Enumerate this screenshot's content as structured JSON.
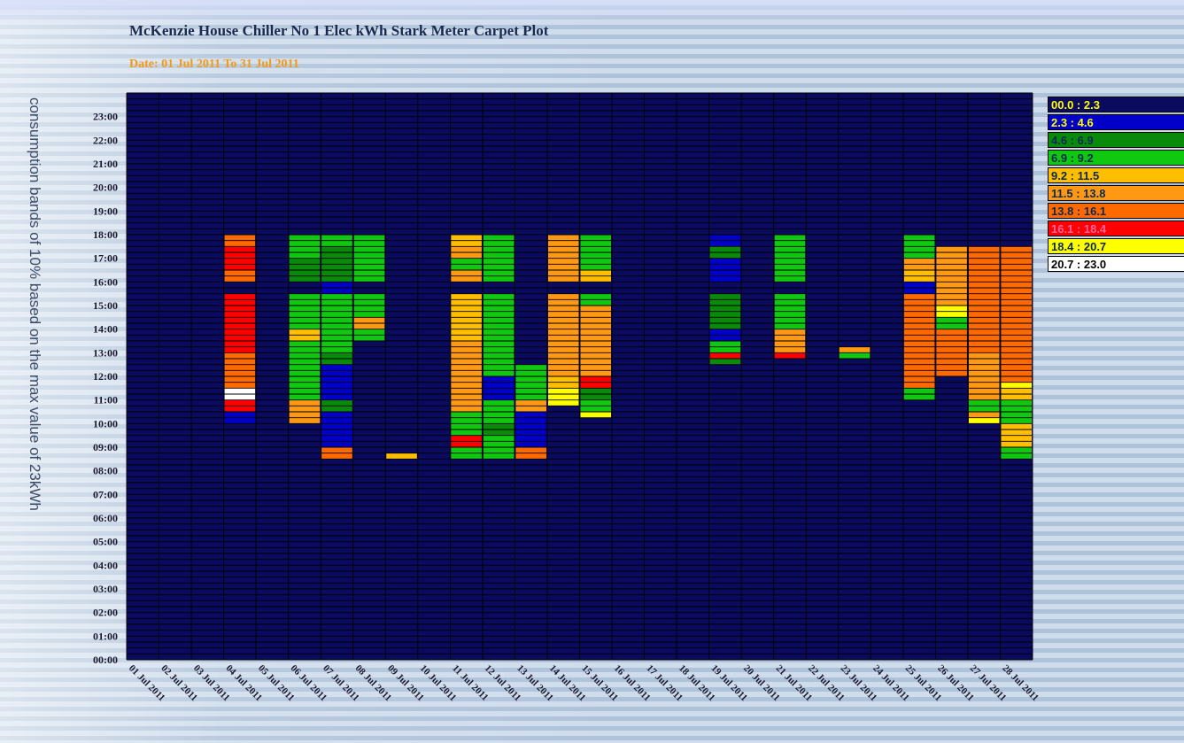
{
  "chart_data": {
    "type": "heatmap",
    "title": "McKenzie House Chiller No 1 Elec kWh Stark Meter Carpet Plot",
    "subtitle": "Date: 01 Jul 2011 To 31 Jul 2011",
    "ylabel": "consumption bands of 10% based on the max value of  23kWh",
    "background_color": "#0a0a5e",
    "x_labels": [
      "01 Jul 2011",
      "02 Jul 2011",
      "03 Jul 2011",
      "04 Jul 2011",
      "05 Jul 2011",
      "06 Jul 2011",
      "07 Jul 2011",
      "08 Jul 2011",
      "09 Jul 2011",
      "10 Jul 2011",
      "11 Jul 2011",
      "12 Jul 2011",
      "13 Jul 2011",
      "14 Jul 2011",
      "15 Jul 2011",
      "16 Jul 2011",
      "17 Jul 2011",
      "18 Jul 2011",
      "19 Jul 2011",
      "20 Jul 2011",
      "21 Jul 2011",
      "22 Jul 2011",
      "23 Jul 2011",
      "24 Jul 2011",
      "25 Jul 2011",
      "26 Jul 2011",
      "27 Jul 2011",
      "28 Jul 2011"
    ],
    "y_labels": [
      "00:00",
      "01:00",
      "02:00",
      "03:00",
      "04:00",
      "05:00",
      "06:00",
      "07:00",
      "08:00",
      "09:00",
      "10:00",
      "11:00",
      "12:00",
      "13:00",
      "14:00",
      "15:00",
      "16:00",
      "17:00",
      "18:00",
      "19:00",
      "20:00",
      "21:00",
      "22:00",
      "23:00"
    ],
    "bands": [
      {
        "label": "00.0 : 2.3",
        "color": "#0a0a5e",
        "text_color": "#ffff00"
      },
      {
        "label": "2.3 : 4.6",
        "color": "#0000c8",
        "text_color": "#ffff00"
      },
      {
        "label": "4.6 : 6.9",
        "color": "#0a8a0a",
        "text_color": "#0a2a55"
      },
      {
        "label": "6.9 : 9.2",
        "color": "#10c810",
        "text_color": "#0a2a55"
      },
      {
        "label": "9.2 : 11.5",
        "color": "#ffbf00",
        "text_color": "#0a2a55"
      },
      {
        "label": "11.5 : 13.8",
        "color": "#ff9914",
        "text_color": "#0a2a55"
      },
      {
        "label": "13.8 : 16.1",
        "color": "#ff6a00",
        "text_color": "#0a2a55"
      },
      {
        "label": "16.1 : 18.4",
        "color": "#ff0000",
        "text_color": "#ff66a0"
      },
      {
        "label": "18.4 : 20.7",
        "color": "#ffff00",
        "text_color": "#0a2a55"
      },
      {
        "label": "20.7 : 23.0",
        "color": "#ffffff",
        "text_color": "#000000"
      }
    ],
    "runs": [
      {
        "day": 4,
        "segments": [
          [
            "10:00",
            "10:30",
            1
          ],
          [
            "10:30",
            "11:00",
            7
          ],
          [
            "11:00",
            "11:30",
            9
          ],
          [
            "11:30",
            "13:00",
            6
          ],
          [
            "13:00",
            "15:30",
            7
          ],
          [
            "16:00",
            "16:30",
            6
          ],
          [
            "16:30",
            "17:30",
            7
          ],
          [
            "17:30",
            "18:00",
            6
          ]
        ]
      },
      {
        "day": 6,
        "segments": [
          [
            "10:00",
            "11:00",
            5
          ],
          [
            "11:00",
            "13:30",
            3
          ],
          [
            "13:30",
            "14:00",
            4
          ],
          [
            "14:00",
            "15:30",
            3
          ],
          [
            "16:00",
            "17:00",
            2
          ],
          [
            "17:00",
            "18:00",
            3
          ]
        ]
      },
      {
        "day": 7,
        "segments": [
          [
            "08:30",
            "09:00",
            6
          ],
          [
            "09:00",
            "10:30",
            1
          ],
          [
            "10:30",
            "11:00",
            2
          ],
          [
            "11:00",
            "12:30",
            1
          ],
          [
            "12:30",
            "13:00",
            2
          ],
          [
            "13:00",
            "15:30",
            3
          ],
          [
            "15:30",
            "16:00",
            1
          ],
          [
            "16:00",
            "17:30",
            2
          ],
          [
            "17:30",
            "18:00",
            3
          ]
        ]
      },
      {
        "day": 8,
        "segments": [
          [
            "13:30",
            "14:00",
            3
          ],
          [
            "14:00",
            "14:30",
            5
          ],
          [
            "14:30",
            "15:30",
            3
          ],
          [
            "16:00",
            "18:00",
            3
          ]
        ]
      },
      {
        "day": 9,
        "segments": [
          [
            "08:30",
            "08:45",
            4
          ]
        ]
      },
      {
        "day": 11,
        "segments": [
          [
            "08:30",
            "09:00",
            3
          ],
          [
            "09:00",
            "09:30",
            7
          ],
          [
            "09:30",
            "10:30",
            3
          ],
          [
            "10:30",
            "13:30",
            5
          ],
          [
            "13:30",
            "15:30",
            4
          ],
          [
            "16:00",
            "16:30",
            5
          ],
          [
            "16:30",
            "17:00",
            3
          ],
          [
            "17:00",
            "17:30",
            5
          ],
          [
            "17:30",
            "18:00",
            4
          ]
        ]
      },
      {
        "day": 12,
        "segments": [
          [
            "08:30",
            "09:30",
            3
          ],
          [
            "09:30",
            "10:00",
            2
          ],
          [
            "10:00",
            "11:00",
            3
          ],
          [
            "11:00",
            "12:00",
            1
          ],
          [
            "12:00",
            "15:30",
            3
          ],
          [
            "16:00",
            "18:00",
            3
          ]
        ]
      },
      {
        "day": 13,
        "segments": [
          [
            "08:30",
            "09:00",
            6
          ],
          [
            "09:00",
            "10:30",
            1
          ],
          [
            "10:30",
            "11:00",
            5
          ],
          [
            "11:00",
            "12:30",
            3
          ]
        ]
      },
      {
        "day": 14,
        "segments": [
          [
            "10:45",
            "11:30",
            8
          ],
          [
            "11:30",
            "12:00",
            4
          ],
          [
            "12:00",
            "15:30",
            5
          ],
          [
            "16:00",
            "18:00",
            5
          ]
        ]
      },
      {
        "day": 15,
        "segments": [
          [
            "10:15",
            "10:30",
            8
          ],
          [
            "10:30",
            "11:00",
            3
          ],
          [
            "11:00",
            "11:30",
            2
          ],
          [
            "11:30",
            "12:00",
            7
          ],
          [
            "12:00",
            "15:00",
            5
          ],
          [
            "15:00",
            "15:30",
            3
          ],
          [
            "16:00",
            "16:30",
            4
          ],
          [
            "16:30",
            "18:00",
            3
          ]
        ]
      },
      {
        "day": 19,
        "segments": [
          [
            "12:30",
            "12:45",
            2
          ],
          [
            "12:45",
            "13:00",
            7
          ],
          [
            "13:00",
            "13:30",
            3
          ],
          [
            "13:30",
            "14:00",
            1
          ],
          [
            "14:00",
            "15:30",
            2
          ],
          [
            "16:00",
            "16:30",
            1
          ],
          [
            "16:30",
            "17:00",
            1
          ],
          [
            "17:00",
            "17:30",
            2
          ],
          [
            "17:30",
            "18:00",
            1
          ]
        ]
      },
      {
        "day": 21,
        "segments": [
          [
            "12:45",
            "13:00",
            7
          ],
          [
            "13:00",
            "14:00",
            5
          ],
          [
            "14:00",
            "15:30",
            3
          ],
          [
            "16:00",
            "18:00",
            3
          ]
        ]
      },
      {
        "day": 23,
        "segments": [
          [
            "12:45",
            "13:00",
            3
          ],
          [
            "13:00",
            "13:15",
            5
          ]
        ]
      },
      {
        "day": 25,
        "segments": [
          [
            "11:00",
            "11:30",
            3
          ],
          [
            "11:30",
            "15:30",
            6
          ],
          [
            "15:30",
            "16:00",
            1
          ],
          [
            "16:00",
            "16:30",
            4
          ],
          [
            "16:30",
            "17:00",
            5
          ],
          [
            "17:00",
            "18:00",
            3
          ]
        ]
      },
      {
        "day": 26,
        "segments": [
          [
            "12:00",
            "14:00",
            6
          ],
          [
            "14:00",
            "14:30",
            3
          ],
          [
            "14:30",
            "15:00",
            8
          ],
          [
            "15:00",
            "17:30",
            5
          ]
        ]
      },
      {
        "day": 27,
        "segments": [
          [
            "10:00",
            "10:15",
            8
          ],
          [
            "10:15",
            "10:30",
            5
          ],
          [
            "10:30",
            "11:00",
            3
          ],
          [
            "11:00",
            "13:00",
            5
          ],
          [
            "13:00",
            "17:30",
            6
          ]
        ]
      },
      {
        "day": 28,
        "segments": [
          [
            "08:30",
            "09:00",
            3
          ],
          [
            "09:00",
            "10:00",
            4
          ],
          [
            "10:00",
            "11:00",
            3
          ],
          [
            "11:00",
            "11:30",
            4
          ],
          [
            "11:30",
            "11:45",
            8
          ],
          [
            "11:45",
            "17:30",
            6
          ]
        ]
      }
    ]
  }
}
